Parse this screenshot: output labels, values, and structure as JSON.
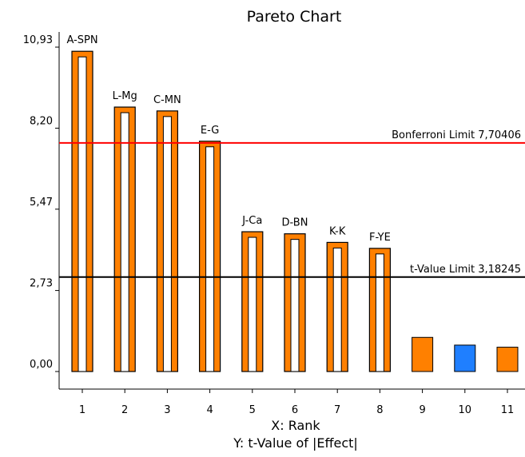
{
  "chart_data": {
    "type": "bar",
    "title": "Pareto Chart",
    "xlabel": "X: Rank",
    "ylabel": "Y: t-Value of |Effect|",
    "categories": [
      "1",
      "2",
      "3",
      "4",
      "5",
      "6",
      "7",
      "8",
      "9",
      "10",
      "11"
    ],
    "bar_labels": [
      "A-SPN",
      "L-Mg",
      "C-MN",
      "E-G",
      "J-Ca",
      "D-BN",
      "K-K",
      "F-YE",
      "",
      "",
      ""
    ],
    "values": [
      10.79,
      8.91,
      8.78,
      7.76,
      4.71,
      4.64,
      4.35,
      4.15,
      1.15,
      0.89,
      0.82
    ],
    "bar_styles": [
      "outlined",
      "outlined",
      "outlined",
      "outlined",
      "outlined",
      "outlined",
      "outlined",
      "outlined",
      "solid",
      "solid",
      "solid"
    ],
    "bar_colors": [
      "#ff8000",
      "#ff8000",
      "#ff8000",
      "#ff8000",
      "#ff8000",
      "#ff8000",
      "#ff8000",
      "#ff8000",
      "#ff8000",
      "#1f7fff",
      "#ff8000"
    ],
    "yticks": [
      0.0,
      2.73,
      5.47,
      8.2,
      10.93
    ],
    "ytick_labels": [
      "0,00",
      "2,73",
      "5,47",
      "8,20",
      "10,93"
    ],
    "ylim": [
      0,
      11.6
    ],
    "reference_lines": [
      {
        "label": "Bonferroni Limit 7,70406",
        "value": 7.70406,
        "color": "#ff0000"
      },
      {
        "label": "t-Value Limit 3,18245",
        "value": 3.18245,
        "color": "#000000"
      }
    ],
    "grid": false,
    "legend": "none"
  }
}
